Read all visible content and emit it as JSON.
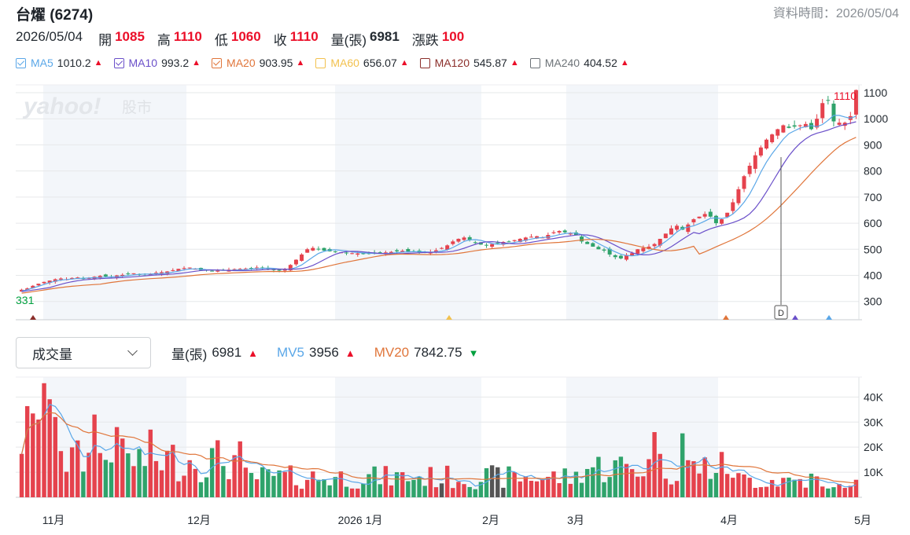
{
  "header": {
    "title": "台燿 (6274)",
    "data_time": "資料時間：2026/05/04"
  },
  "quote": {
    "date": "2026/05/04",
    "items": [
      {
        "label": "開",
        "value": "1085",
        "color": "red"
      },
      {
        "label": "高",
        "value": "1110",
        "color": "red"
      },
      {
        "label": "低",
        "value": "1060",
        "color": "red"
      },
      {
        "label": "收",
        "value": "1110",
        "color": "red"
      },
      {
        "label": "量(張)",
        "value": "6981",
        "color": "neutral"
      },
      {
        "label": "漲跌",
        "value": "100",
        "color": "red"
      }
    ]
  },
  "ma_legend": [
    {
      "name": "MA5",
      "value": "1010.2",
      "color": "#5aa7e8",
      "checked": true,
      "trend": "up"
    },
    {
      "name": "MA10",
      "value": "993.2",
      "color": "#6a4fc9",
      "checked": true,
      "trend": "up"
    },
    {
      "name": "MA20",
      "value": "903.95",
      "color": "#e0753a",
      "checked": true,
      "trend": "up"
    },
    {
      "name": "MA60",
      "value": "656.07",
      "color": "#f2c14e",
      "checked": false,
      "trend": "up"
    },
    {
      "name": "MA120",
      "value": "545.87",
      "color": "#8b2e2a",
      "checked": false,
      "trend": "up"
    },
    {
      "name": "MA240",
      "value": "404.52",
      "color": "#6d7378",
      "checked": false,
      "trend": "up"
    }
  ],
  "volume_row": {
    "selector": "成交量",
    "items": [
      {
        "name": "量(張)",
        "value": "6981",
        "trend": "up",
        "color": "#232a31"
      },
      {
        "name": "MV5",
        "value": "3956",
        "trend": "up",
        "color": "#5aa7e8"
      },
      {
        "name": "MV20",
        "value": "7842.75",
        "trend": "down",
        "color": "#e0753a"
      }
    ]
  },
  "colors": {
    "up": "#e5424d",
    "down": "#2fa36b",
    "ma5": "#5aa7e8",
    "ma10": "#6a4fc9",
    "ma20": "#e0753a"
  },
  "chart_data": {
    "type": "candlestick",
    "price_ticks": [
      300,
      400,
      500,
      600,
      700,
      800,
      900,
      1000,
      1100
    ],
    "volume_ticks": [
      "10K",
      "20K",
      "30K",
      "40K"
    ],
    "month_labels": [
      "11月",
      "12月",
      "2026 1月",
      "2月",
      "3月",
      "4月",
      "5月"
    ],
    "high_label": "1110",
    "low_label": "331",
    "marker_label": "D",
    "closes": [
      345,
      350,
      360,
      368,
      375,
      380,
      385,
      388,
      385,
      390,
      392,
      388,
      390,
      395,
      398,
      396,
      393,
      400,
      402,
      405,
      408,
      403,
      400,
      405,
      410,
      412,
      415,
      420,
      425,
      428,
      430,
      425,
      420,
      418,
      415,
      418,
      420,
      422,
      424,
      425,
      426,
      428,
      430,
      428,
      425,
      420,
      418,
      425,
      440,
      460,
      480,
      500,
      505,
      500,
      495,
      492,
      490,
      488,
      486,
      485,
      484,
      483,
      482,
      484,
      486,
      488,
      490,
      492,
      494,
      492,
      490,
      488,
      486,
      490,
      496,
      505,
      515,
      530,
      540,
      545,
      535,
      525,
      518,
      515,
      520,
      525,
      528,
      530,
      535,
      540,
      545,
      548,
      550,
      545,
      555,
      565,
      570,
      565,
      560,
      555,
      530,
      520,
      510,
      500,
      495,
      480,
      470,
      465,
      478,
      485,
      500,
      505,
      510,
      520,
      540,
      560,
      580,
      590,
      575,
      595,
      615,
      625,
      635,
      625,
      600,
      615,
      640,
      680,
      730,
      780,
      820,
      860,
      890,
      920,
      940,
      960,
      975,
      965,
      970,
      975,
      980,
      960,
      1000,
      1060,
      1070,
      990,
      985,
      985,
      1010,
      1110
    ],
    "ma5": [
      340,
      345,
      352,
      358,
      365,
      372,
      378,
      382,
      384,
      386,
      388,
      389,
      390,
      391,
      392,
      393,
      394,
      395,
      397,
      399,
      402,
      404,
      405,
      405,
      406,
      407,
      409,
      412,
      416,
      421,
      424,
      425,
      424,
      422,
      421,
      420,
      419,
      419,
      420,
      421,
      422,
      424,
      426,
      427,
      428,
      427,
      424,
      423,
      424,
      430,
      440,
      455,
      470,
      484,
      492,
      497,
      498,
      496,
      494,
      490,
      488,
      486,
      485,
      484,
      484,
      484,
      485,
      487,
      489,
      490,
      491,
      491,
      490,
      489,
      490,
      493,
      498,
      507,
      518,
      530,
      536,
      537,
      534,
      528,
      522,
      519,
      520,
      522,
      526,
      530,
      535,
      539,
      543,
      545,
      547,
      551,
      556,
      560,
      562,
      562,
      556,
      545,
      534,
      522,
      511,
      500,
      490,
      481,
      476,
      475,
      477,
      484,
      493,
      503,
      515,
      530,
      547,
      566,
      580,
      585,
      590,
      598,
      608,
      619,
      620,
      618,
      622,
      635,
      655,
      680,
      712,
      752,
      796,
      834,
      866,
      894,
      922,
      943,
      954,
      964,
      970,
      974,
      970,
      978,
      994,
      1013,
      1013,
      1007,
      1002,
      1010
    ]
  }
}
